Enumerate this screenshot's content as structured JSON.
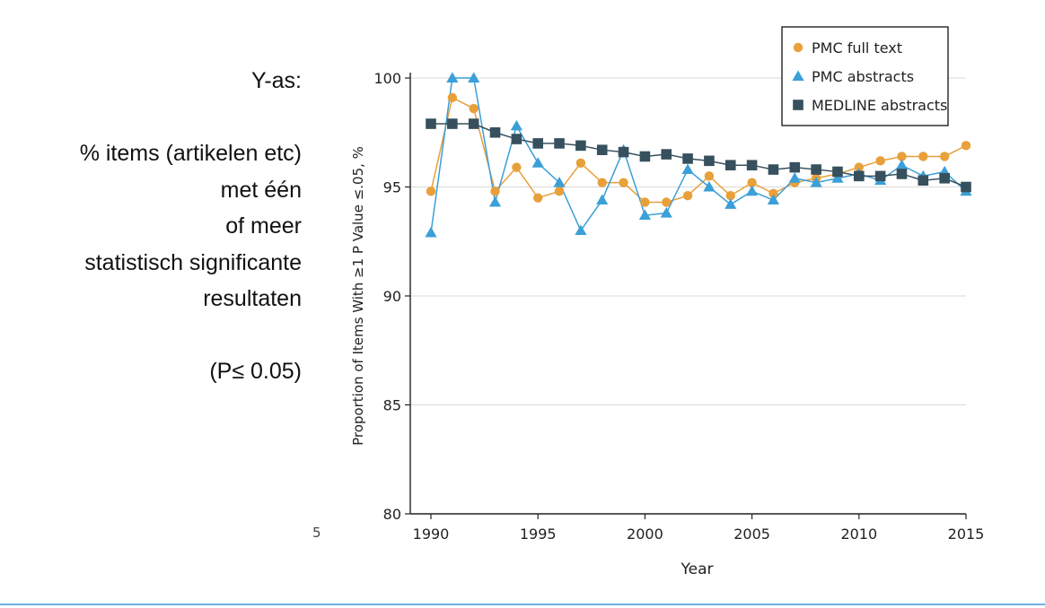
{
  "annotation": {
    "lines": [
      "Y-as:",
      "",
      "% items  (artikelen etc)",
      "met één",
      "of meer",
      "statistisch significante",
      "resultaten",
      "",
      "(P≤ 0.05)"
    ]
  },
  "stray_mark": "5",
  "colors": {
    "pmc_full_text": "#e8a03a",
    "pmc_abstracts": "#3b9fd8",
    "medline_abstracts": "#37505e",
    "grid": "#d9d9d9",
    "axis": "#222222",
    "bottom_rule": "#6fb0e6"
  },
  "chart_data": {
    "type": "line",
    "title": "",
    "xlabel": "Year",
    "ylabel": "Proportion of Items With ≥1 P Value ≤.05, %",
    "xlim": [
      1990,
      2015
    ],
    "ylim": [
      80,
      100
    ],
    "xticks": [
      1990,
      1995,
      2000,
      2005,
      2010,
      2015
    ],
    "yticks": [
      80,
      85,
      90,
      95,
      100
    ],
    "grid": "horizontal",
    "legend_position": "top-right",
    "x": [
      1990,
      1991,
      1992,
      1993,
      1994,
      1995,
      1996,
      1997,
      1998,
      1999,
      2000,
      2001,
      2002,
      2003,
      2004,
      2005,
      2006,
      2007,
      2008,
      2009,
      2010,
      2011,
      2012,
      2013,
      2014,
      2015
    ],
    "series": [
      {
        "name": "PMC full text",
        "marker": "circle",
        "color": "#e8a03a",
        "values": [
          94.8,
          99.1,
          98.6,
          94.8,
          95.9,
          94.5,
          94.8,
          96.1,
          95.2,
          95.2,
          94.3,
          94.3,
          94.6,
          95.5,
          94.6,
          95.2,
          94.7,
          95.2,
          95.4,
          95.6,
          95.9,
          96.2,
          96.4,
          96.4,
          96.4,
          96.9
        ]
      },
      {
        "name": "PMC abstracts",
        "marker": "triangle",
        "color": "#3b9fd8",
        "values": [
          92.9,
          100,
          100,
          94.3,
          97.8,
          96.1,
          95.2,
          93.0,
          94.4,
          96.7,
          93.7,
          93.8,
          95.8,
          95.0,
          94.2,
          94.8,
          94.4,
          95.4,
          95.2,
          95.4,
          95.6,
          95.3,
          96.0,
          95.5,
          95.7,
          94.8
        ]
      },
      {
        "name": "MEDLINE abstracts",
        "marker": "square",
        "color": "#37505e",
        "values": [
          97.9,
          97.9,
          97.9,
          97.5,
          97.2,
          97.0,
          97.0,
          96.9,
          96.7,
          96.6,
          96.4,
          96.5,
          96.3,
          96.2,
          96.0,
          96.0,
          95.8,
          95.9,
          95.8,
          95.7,
          95.5,
          95.5,
          95.6,
          95.3,
          95.4,
          95.0
        ]
      }
    ]
  }
}
